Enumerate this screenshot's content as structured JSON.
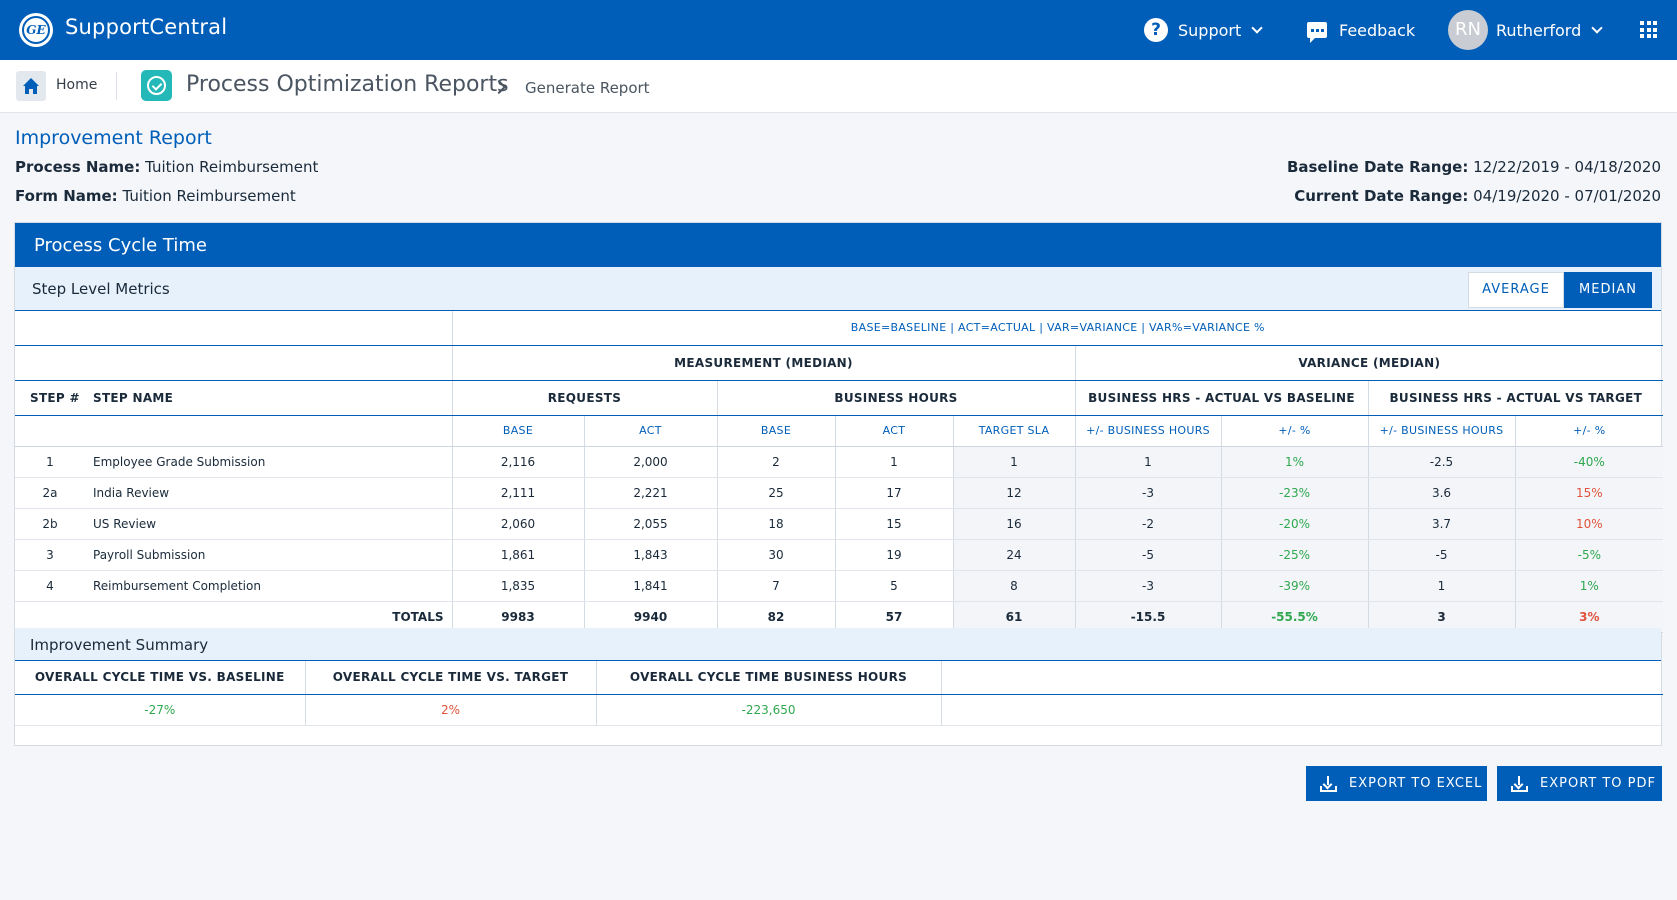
{
  "header": {
    "app_title": "SupportCentral",
    "logo_text": "GE",
    "support_label": "Support",
    "feedback_label": "Feedback",
    "user_initials": "RN",
    "user_name": "Rutherford",
    "brand_color": "#005eb8"
  },
  "breadcrumb": {
    "home_label": "Home",
    "app_title": "Process Optimization Reports",
    "current": "Generate Report"
  },
  "report": {
    "title": "Improvement Report",
    "process_name_label": "Process Name:",
    "process_name": "Tuition Reimbursement",
    "form_name_label": "Form Name:",
    "form_name": "Tuition Reimbursement",
    "baseline_label": "Baseline Date Range:",
    "baseline_range": "12/22/2019 - 04/18/2020",
    "current_label": "Current Date Range:",
    "current_range": "04/19/2020 - 07/01/2020"
  },
  "card": {
    "title": "Process Cycle Time",
    "subtitle": "Step Level Metrics",
    "toggle_average": "AVERAGE",
    "toggle_median": "MEDIAN",
    "toggle_selected": "MEDIAN"
  },
  "table": {
    "legend": "BASE=BASELINE | ACT=ACTUAL | VAR=VARIANCE | VAR%=VARIANCE %",
    "group_measurement": "MEASUREMENT (MEDIAN)",
    "group_variance": "VARIANCE (MEDIAN)",
    "head_step": "STEP #",
    "head_name": "STEP NAME",
    "head_requests": "REQUESTS",
    "head_hours": "BUSINESS HOURS",
    "head_vs_baseline": "BUSINESS HRS - ACTUAL VS BASELINE",
    "head_vs_target": "BUSINESS HRS - ACTUAL VS TARGET",
    "sub_base": "BASE",
    "sub_act": "ACT",
    "sub_target": "TARGET SLA",
    "sub_var_hours": "+/- BUSINESS HOURS",
    "sub_var_pct": "+/- %",
    "rows": [
      {
        "step": "1",
        "name": "Employee Grade Submission",
        "req_base": "2,116",
        "req_act": "2,000",
        "hrs_base": "2",
        "hrs_act": "1",
        "target": "1",
        "vb_hrs": "1",
        "vb_pct": "1%",
        "vb_dir": "pos",
        "vt_hrs": "-2.5",
        "vt_pct": "-40%",
        "vt_dir": "pos"
      },
      {
        "step": "2a",
        "name": "India Review",
        "req_base": "2,111",
        "req_act": "2,221",
        "hrs_base": "25",
        "hrs_act": "17",
        "target": "12",
        "vb_hrs": "-3",
        "vb_pct": "-23%",
        "vb_dir": "pos",
        "vt_hrs": "3.6",
        "vt_pct": "15%",
        "vt_dir": "neg"
      },
      {
        "step": "2b",
        "name": "US Review",
        "req_base": "2,060",
        "req_act": "2,055",
        "hrs_base": "18",
        "hrs_act": "15",
        "target": "16",
        "vb_hrs": "-2",
        "vb_pct": "-20%",
        "vb_dir": "pos",
        "vt_hrs": "3.7",
        "vt_pct": "10%",
        "vt_dir": "neg"
      },
      {
        "step": "3",
        "name": "Payroll Submission",
        "req_base": "1,861",
        "req_act": "1,843",
        "hrs_base": "30",
        "hrs_act": "19",
        "target": "24",
        "vb_hrs": "-5",
        "vb_pct": "-25%",
        "vb_dir": "pos",
        "vt_hrs": "-5",
        "vt_pct": "-5%",
        "vt_dir": "pos"
      },
      {
        "step": "4",
        "name": "Reimbursement Completion",
        "req_base": "1,835",
        "req_act": "1,841",
        "hrs_base": "7",
        "hrs_act": "5",
        "target": "8",
        "vb_hrs": "-3",
        "vb_pct": "-39%",
        "vb_dir": "pos",
        "vt_hrs": "1",
        "vt_pct": "1%",
        "vt_dir": "pos"
      }
    ],
    "totals": {
      "label": "TOTALS",
      "req_base": "9983",
      "req_act": "9940",
      "hrs_base": "82",
      "hrs_act": "57",
      "target": "61",
      "vb_hrs": "-15.5",
      "vb_pct": "-55.5%",
      "vt_hrs": "3",
      "vt_pct": "3%"
    }
  },
  "summary": {
    "title": "Improvement Summary",
    "col1_label": "OVERALL CYCLE TIME VS. BASELINE",
    "col1_value": "-27%",
    "col2_label": "OVERALL CYCLE TIME VS. TARGET",
    "col2_value": "2%",
    "col3_label": "OVERALL CYCLE TIME BUSINESS HOURS",
    "col3_value": "-223,650"
  },
  "actions": {
    "export_excel": "EXPORT TO EXCEL",
    "export_pdf": "EXPORT TO PDF"
  },
  "colors": {
    "positive": "#2fa84f",
    "negative": "#e0533d"
  }
}
